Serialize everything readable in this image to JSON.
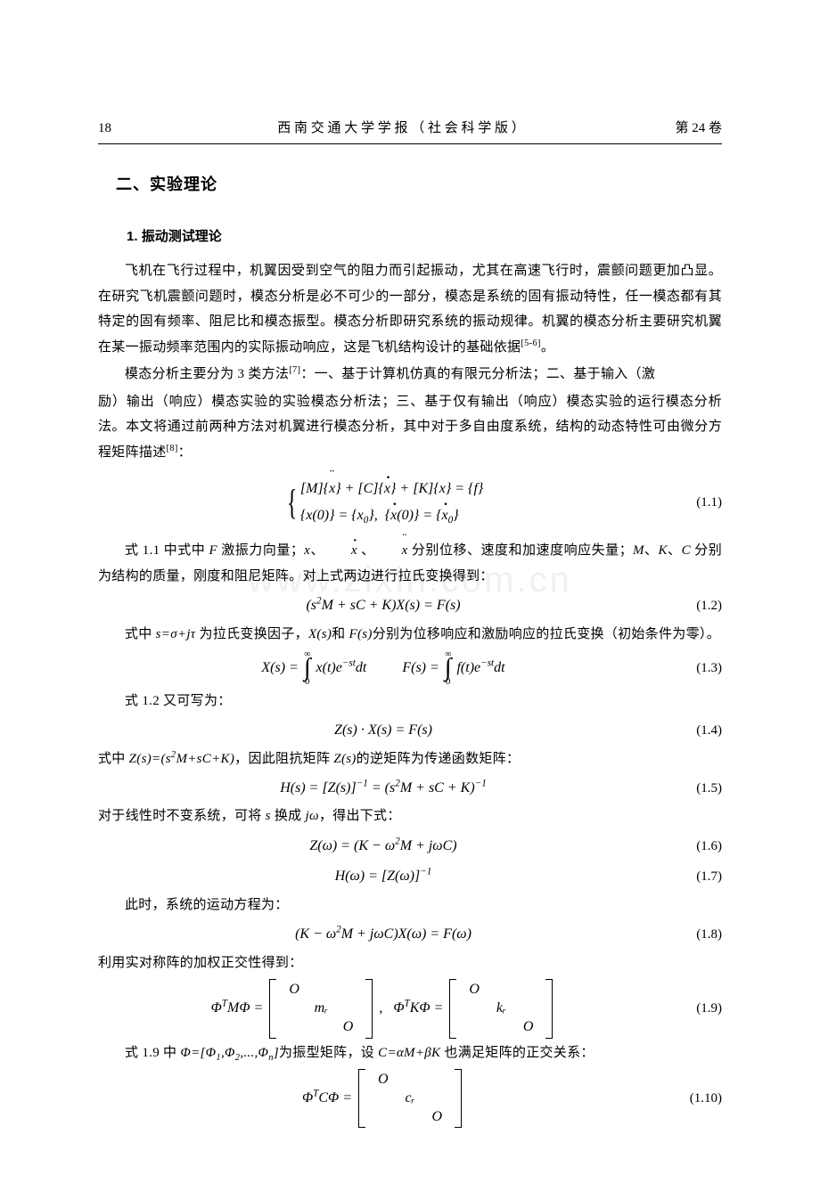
{
  "header": {
    "page_no": "18",
    "journal_center": "西 南 交 通 大 学 学 报 （ 社 会 科 学 版 ）",
    "volume_right": "第 24 卷"
  },
  "section": {
    "title": "二、实验理论",
    "sub1_num": "1.",
    "sub1_title": "振动测试理论"
  },
  "paragraphs": {
    "p1": "飞机在飞行过程中，机翼因受到空气的阻力而引起振动，尤其在高速飞行时，震颤问题更加凸显。在研究飞机震颤问题时，模态分析是必不可少的一部分，模态是系统的固有振动特性，任一模态都有其特定的固有频率、阻尼比和模态振型。模态分析即研究系统的振动规律。机翼的模态分析主要研究机翼在某一振动频率范围内的实际振动响应，这是飞机结构设计的基础依据",
    "p1_cite": "[5-6]",
    "p1_end": "。",
    "p2a": "模态分析主要分为 3 类方法",
    "p2_cite": "[7]",
    "p2b": "：一、基于计算机仿真的有限元分析法；二、基于输入（激",
    "p2c": "励）输出（响应）模态实验的实验模态分析法；三、基于仅有输出（响应）模态实验的运行模态分析法。本文将通过前两种方法对机翼进行模态分析，其中对于多自由度系统，结构的动态特性可由微分方程矩阵描述",
    "p2_cite2": "[8]",
    "p2d": "：",
    "p3a": "式 1.1 中式中 ",
    "p3b": " 激振力向量；",
    "p3c": "、",
    "p3d": " 、",
    "p3e": " 分别位移、速度和加速度响应失量；",
    "p3f": "、",
    "p3g": "、",
    "p3h": " 分别为结构的质量，刚度和阻尼矩阵。对上式两边进行拉氏变换得到：",
    "p4a": "式中 ",
    "p4b": " 为拉氏变换因子，",
    "p4c": "和 ",
    "p4d": "分别为位移响应和激励响应的拉氏变换（初始条件为零）。",
    "p5": "式 1.2 又可写为：",
    "p6a": "式中 ",
    "p6b": "，因此阻抗矩阵 ",
    "p6c": "的逆矩阵为传递函数矩阵：",
    "p7a": "对于线性时不变系统，可将 ",
    "p7b": " 换成 ",
    "p7c": "，得出下式：",
    "p8": "此时，系统的运动方程为：",
    "p9": "利用实对称阵的加权正交性得到：",
    "p10a": "式 1.9 中 ",
    "p10b": "为振型矩阵，设 ",
    "p10c": " 也满足矩阵的正交关系："
  },
  "vars": {
    "F": "F",
    "x": "x",
    "M": "M",
    "K": "K",
    "C": "C",
    "s_def": "s=σ+jτ",
    "Xs": "X(s)",
    "Fs": "F(s)",
    "Zs": "Z(s)",
    "Zs_def": "Z(s)=(s²M+sC+K)",
    "s": "s",
    "jw": "jω",
    "Phi_def": "Φ=[Φ₁,Φ₂,...,Φₙ]",
    "C_def": "C=αM+βK"
  },
  "equations": {
    "eq1_line1": "[M]{ẍ} + [C]{ẋ} + [K]{x} = {f}",
    "eq1_line2": "{x(0)} = {x₀},  {ẋ(0)} = {ẋ₀}",
    "eq1_num": "(1.1)",
    "eq2": "(s²M + sC + K)X(s) = F(s)",
    "eq2_num": "(1.2)",
    "eq3_left_lead": "X(s) = ",
    "eq3_left_int": "x(t)e⁻ˢᵗdt",
    "eq3_right_lead": "F(s) = ",
    "eq3_right_int": "f(t)e⁻ˢᵗdt",
    "eq3_num": "(1.3)",
    "eq4": "Z(s) · X(s) = F(s)",
    "eq4_num": "(1.4)",
    "eq5": "H(s) = [Z(s)]⁻¹ = (s²M + sC + K)⁻¹",
    "eq5_num": "(1.5)",
    "eq6": "Z(ω) = (K − ω²M + jωC)",
    "eq6_num": "(1.6)",
    "eq7": "H(ω) = [Z(ω)]⁻¹",
    "eq7_num": "(1.7)",
    "eq8": "(K − ω²M + jωC)X(ω) = F(ω)",
    "eq8_num": "(1.8)",
    "eq9_lead1": "ΦᵀMΦ = ",
    "eq9_lead2": "ΦᵀKΦ = ",
    "eq9_num": "(1.9)",
    "eq10_lead": "ΦᵀCΦ = ",
    "eq10_num": "(1.10)",
    "mat_O": "O",
    "mat_mr": "mᵣ",
    "mat_kr": "kᵣ",
    "mat_cr": "cᵣ",
    "int_top": "∞",
    "int_bot": "0"
  },
  "watermark": "www.zixin.com.cn"
}
